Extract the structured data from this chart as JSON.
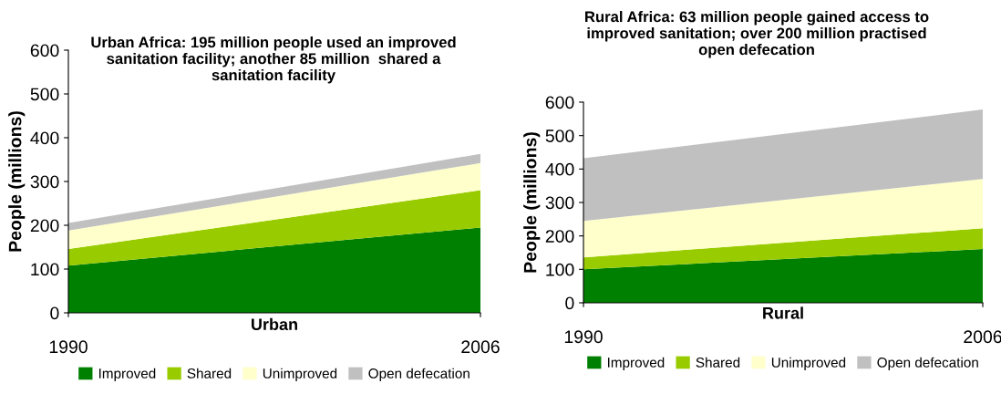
{
  "chart_data": [
    {
      "type": "area",
      "title": "Urban Africa: 195 million people used an improved sanitation facility; another 85 million  shared a sanitation facility",
      "xlabel": "Urban",
      "ylabel": "People (millions)",
      "stacked": true,
      "x": [
        "1990",
        "2006"
      ],
      "xlim": [
        "1990",
        "2006"
      ],
      "xticks": [
        "1990",
        "2006"
      ],
      "ylim": [
        0,
        600
      ],
      "yticks": [
        0,
        100,
        200,
        300,
        400,
        500,
        600
      ],
      "grid": false,
      "legend": "bottom",
      "series": [
        {
          "name": "Improved",
          "color": "#008000",
          "values": [
            108,
            195
          ]
        },
        {
          "name": "Shared",
          "color": "#99cc00",
          "values": [
            38,
            85
          ]
        },
        {
          "name": "Unimproved",
          "color": "#ffffcc",
          "values": [
            42,
            62
          ]
        },
        {
          "name": "Open defecation",
          "color": "#c0c0c0",
          "values": [
            17,
            21
          ]
        }
      ]
    },
    {
      "type": "area",
      "title": "Rural Africa: 63 million people gained access to improved sanitation; over 200 million practised open defecation",
      "xlabel": "Rural",
      "ylabel": "People (millions)",
      "stacked": true,
      "x": [
        "1990",
        "2006"
      ],
      "xlim": [
        "1990",
        "2006"
      ],
      "xticks": [
        "1990",
        "2006"
      ],
      "ylim": [
        0,
        600
      ],
      "yticks": [
        0,
        100,
        200,
        300,
        400,
        500,
        600
      ],
      "grid": false,
      "legend": "bottom",
      "series": [
        {
          "name": "Improved",
          "color": "#008000",
          "values": [
            100,
            161
          ]
        },
        {
          "name": "Shared",
          "color": "#99cc00",
          "values": [
            36,
            62
          ]
        },
        {
          "name": "Unimproved",
          "color": "#ffffcc",
          "values": [
            109,
            147
          ]
        },
        {
          "name": "Open defecation",
          "color": "#c0c0c0",
          "values": [
            187,
            208
          ]
        }
      ]
    }
  ]
}
